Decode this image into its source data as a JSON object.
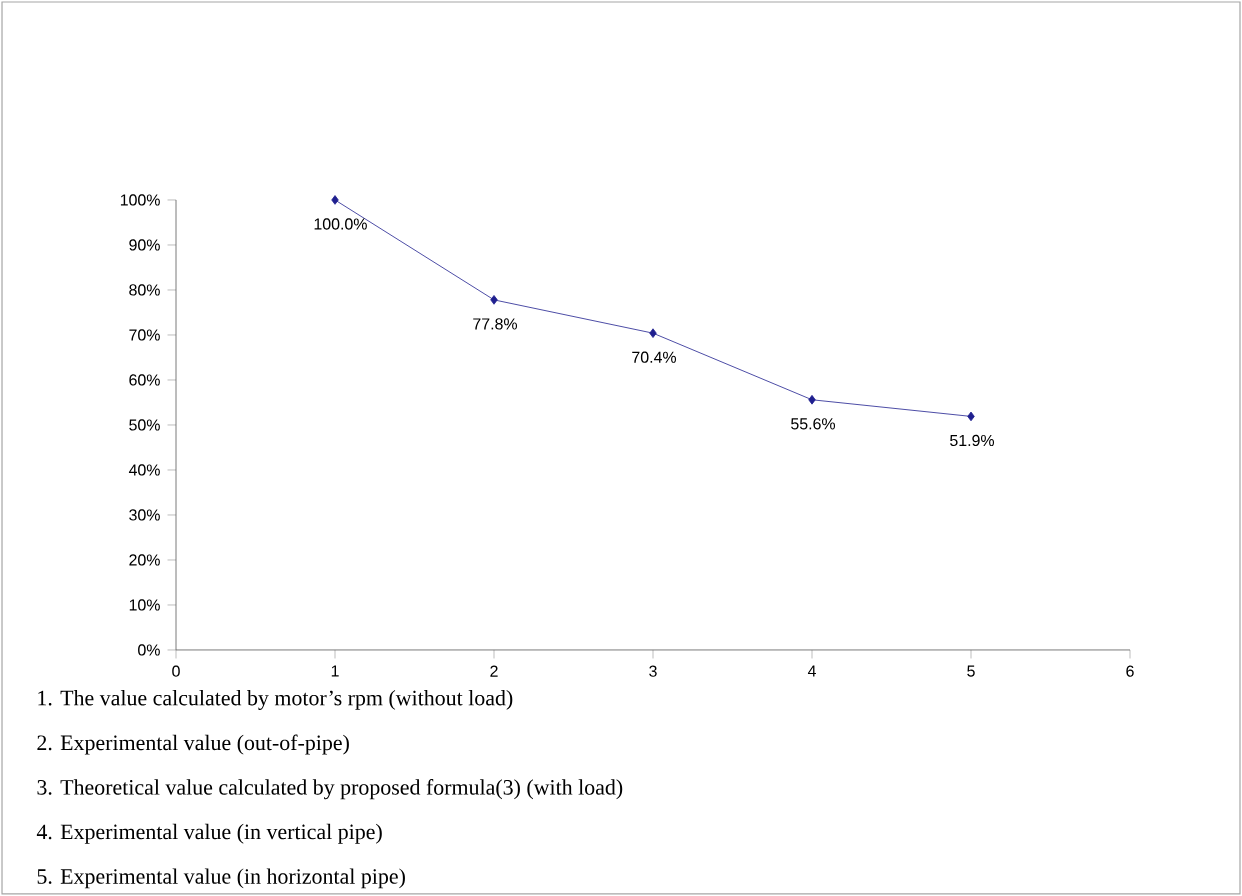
{
  "chart_data": {
    "type": "line",
    "x": [
      1,
      2,
      3,
      4,
      5
    ],
    "values": [
      100,
      77.8,
      70.4,
      55.6,
      51.9
    ],
    "value_labels": [
      "100.0%",
      "77.8%",
      "70.4%",
      "55.6%",
      "51.9%"
    ],
    "color": "#1f1f8f",
    "marker": "diamond",
    "grid": false,
    "xlim": [
      0,
      6
    ],
    "xticks": [
      0,
      1,
      2,
      3,
      4,
      5,
      6
    ],
    "ylim": [
      0,
      100
    ],
    "yticks": [
      {
        "value": 0,
        "label": "0%"
      },
      {
        "value": 10,
        "label": "10%"
      },
      {
        "value": 20,
        "label": "20%"
      },
      {
        "value": 30,
        "label": "30%"
      },
      {
        "value": 40,
        "label": "40%"
      },
      {
        "value": 50,
        "label": "50%"
      },
      {
        "value": 60,
        "label": "60%"
      },
      {
        "value": 70,
        "label": "70%"
      },
      {
        "value": 80,
        "label": "80%"
      },
      {
        "value": 90,
        "label": "90%"
      },
      {
        "value": 100,
        "label": "100%"
      }
    ],
    "annotations": [
      "1. The value calculated by motor’s rpm (without load)",
      "2. Experimental value (out-of-pipe)",
      "3. Theoretical value calculated by proposed formula(3) (with load)",
      "4. Experimental value (in vertical pipe)",
      "5. Experimental value (in horizontal pipe)"
    ]
  }
}
